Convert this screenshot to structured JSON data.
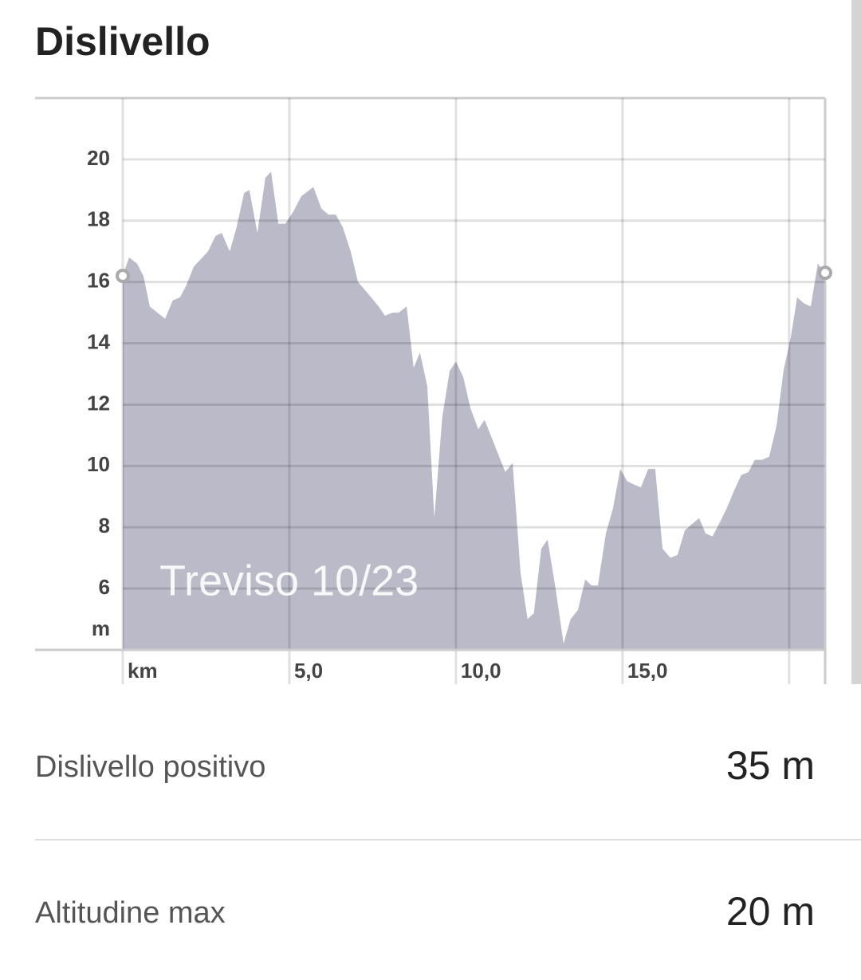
{
  "header": {
    "title": "Dislivello"
  },
  "chart_data": {
    "type": "area",
    "x": [
      0,
      0.19,
      0.43,
      0.62,
      0.81,
      1.27,
      1.5,
      1.72,
      1.91,
      2.13,
      2.56,
      2.78,
      2.97,
      3.21,
      3.42,
      3.64,
      3.8,
      4.04,
      4.28,
      4.45,
      4.67,
      4.88,
      5.12,
      5.36,
      5.72,
      5.96,
      6.17,
      6.39,
      6.6,
      6.84,
      7.06,
      7.3,
      7.68,
      7.87,
      8.09,
      8.28,
      8.52,
      8.73,
      8.92,
      9.14,
      9.35,
      9.59,
      9.81,
      10.0,
      10.22,
      10.43,
      10.67,
      10.86,
      11.08,
      11.48,
      11.7,
      11.94,
      12.15,
      12.34,
      12.56,
      12.75,
      12.99,
      13.23,
      13.44,
      13.66,
      13.88,
      14.07,
      14.26,
      14.5,
      14.71,
      14.93,
      15.14,
      15.33,
      15.55,
      15.77,
      15.98,
      16.2,
      16.44,
      16.65,
      16.87,
      17.08,
      17.3,
      17.49,
      17.7,
      17.94,
      18.16,
      18.35,
      18.56,
      18.78,
      18.97,
      19.19,
      19.4,
      19.62,
      19.83,
      20.05,
      20.24,
      20.45,
      20.65,
      20.86,
      21.08
    ],
    "values": [
      16.2,
      16.8,
      16.6,
      16.2,
      15.2,
      14.8,
      15.4,
      15.5,
      15.9,
      16.5,
      17.0,
      17.5,
      17.6,
      17.0,
      17.8,
      18.9,
      19.0,
      17.6,
      19.4,
      19.6,
      17.9,
      17.9,
      18.3,
      18.8,
      19.1,
      18.4,
      18.2,
      18.2,
      17.8,
      17.0,
      16.0,
      15.7,
      15.2,
      14.9,
      15.0,
      15.0,
      15.2,
      13.2,
      13.7,
      12.6,
      8.3,
      11.6,
      13.1,
      13.4,
      12.9,
      11.9,
      11.2,
      11.5,
      10.9,
      9.8,
      10.1,
      6.5,
      5.0,
      5.2,
      7.3,
      7.6,
      6.0,
      4.2,
      5.0,
      5.3,
      6.3,
      6.1,
      6.1,
      7.8,
      8.6,
      9.9,
      9.5,
      9.4,
      9.3,
      9.9,
      9.9,
      7.3,
      7.0,
      7.1,
      7.9,
      8.1,
      8.3,
      7.8,
      7.7,
      8.2,
      8.7,
      9.2,
      9.7,
      9.8,
      10.2,
      10.2,
      10.3,
      11.3,
      13.1,
      14.2,
      15.5,
      15.3,
      15.2,
      16.6,
      16.3
    ],
    "color": "#babac8",
    "xlim": [
      0,
      21.08
    ],
    "ylim": [
      4,
      22
    ],
    "xticks": [
      {
        "value": 0,
        "label": "km"
      },
      {
        "value": 5,
        "label": "5,0"
      },
      {
        "value": 10,
        "label": "10,0"
      },
      {
        "value": 15,
        "label": "15,0"
      },
      {
        "value": 20,
        "label": null
      }
    ],
    "yticks": [
      6,
      8,
      10,
      12,
      14,
      16,
      18,
      20
    ],
    "y_unit": "m",
    "annotation": "Treviso 10/23",
    "grid": true
  },
  "stats": [
    {
      "label": "Dislivello positivo",
      "value": "35 m"
    },
    {
      "label": "Altitudine max",
      "value": "20 m"
    }
  ]
}
